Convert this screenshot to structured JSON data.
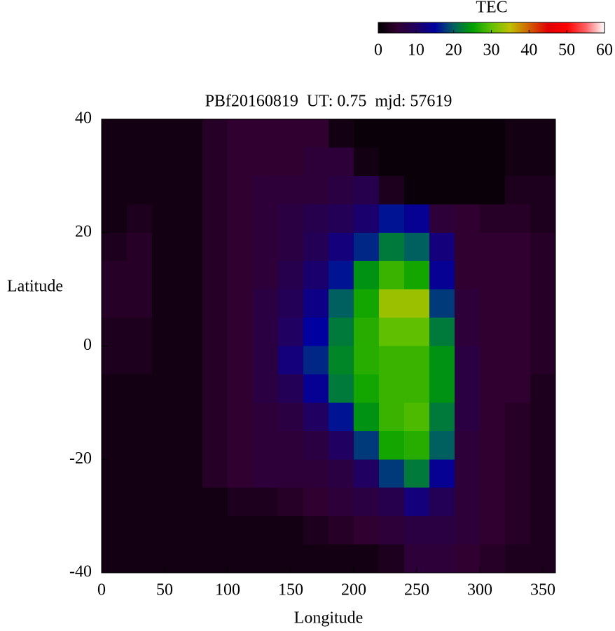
{
  "chart_data": {
    "type": "heatmap",
    "title": "PBf20160819  UT: 0.75  mjd: 57619",
    "xlabel": "Longitude",
    "ylabel": "Latitude",
    "colorbar_label": "TEC",
    "xbins": [
      0,
      20,
      40,
      60,
      80,
      100,
      120,
      140,
      160,
      180,
      200,
      220,
      240,
      260,
      280,
      300,
      320,
      340,
      360
    ],
    "ybins": [
      40,
      35,
      30,
      25,
      20,
      15,
      10,
      5,
      0,
      -5,
      -10,
      -15,
      -20,
      -25,
      -30,
      -35,
      -40
    ],
    "xlim": [
      0,
      360
    ],
    "ylim": [
      -40,
      40
    ],
    "xticks": [
      0,
      50,
      100,
      150,
      200,
      250,
      300,
      350
    ],
    "yticks": [
      -40,
      -20,
      0,
      20,
      40
    ],
    "zlim": [
      0,
      60
    ],
    "zticks": [
      0,
      10,
      20,
      30,
      40,
      50,
      60
    ],
    "colormap": [
      "#000000",
      "#300030",
      "#200060",
      "#0000a0",
      "#006060",
      "#00a000",
      "#60c000",
      "#c0c000",
      "#d06000",
      "#e00000",
      "#ff0000",
      "#ff6060",
      "#ffffff"
    ],
    "z": [
      [
        2,
        2,
        2,
        2,
        4,
        5,
        5,
        5,
        5,
        2,
        1,
        1,
        1,
        1,
        1,
        1,
        2,
        2
      ],
      [
        2,
        2,
        2,
        2,
        4,
        5,
        5,
        5,
        6,
        6,
        2,
        1,
        1,
        1,
        1,
        1,
        2,
        2
      ],
      [
        2,
        2,
        2,
        2,
        4,
        5,
        6,
        6,
        6,
        7,
        8,
        3,
        1,
        1,
        1,
        1,
        3,
        3
      ],
      [
        2,
        3,
        2,
        2,
        4,
        5,
        6,
        7,
        8,
        9,
        11,
        16,
        14,
        6,
        5,
        4,
        4,
        3
      ],
      [
        3,
        4,
        2,
        2,
        4,
        5,
        6,
        7,
        9,
        12,
        17,
        22,
        20,
        12,
        5,
        5,
        5,
        4
      ],
      [
        4,
        4,
        2,
        2,
        4,
        5,
        6,
        8,
        11,
        16,
        24,
        28,
        26,
        14,
        5,
        5,
        5,
        4
      ],
      [
        4,
        4,
        2,
        2,
        4,
        5,
        7,
        9,
        13,
        20,
        26,
        33,
        33,
        18,
        6,
        5,
        5,
        4
      ],
      [
        3,
        3,
        2,
        2,
        4,
        5,
        7,
        10,
        15,
        22,
        27,
        30,
        30,
        22,
        6,
        5,
        5,
        4
      ],
      [
        3,
        3,
        2,
        2,
        4,
        5,
        7,
        12,
        17,
        23,
        27,
        28,
        28,
        24,
        7,
        5,
        5,
        4
      ],
      [
        2,
        2,
        2,
        2,
        4,
        5,
        7,
        9,
        14,
        22,
        26,
        28,
        28,
        24,
        7,
        5,
        5,
        3
      ],
      [
        2,
        2,
        2,
        2,
        4,
        5,
        6,
        7,
        10,
        16,
        24,
        28,
        29,
        22,
        7,
        5,
        4,
        3
      ],
      [
        2,
        2,
        2,
        2,
        4,
        5,
        6,
        6,
        7,
        10,
        18,
        26,
        27,
        20,
        6,
        5,
        4,
        3
      ],
      [
        2,
        2,
        2,
        2,
        4,
        5,
        6,
        6,
        6,
        7,
        10,
        18,
        22,
        14,
        6,
        5,
        4,
        3
      ],
      [
        2,
        2,
        2,
        2,
        2,
        3,
        3,
        4,
        5,
        6,
        7,
        8,
        12,
        9,
        6,
        5,
        4,
        3
      ],
      [
        2,
        2,
        2,
        2,
        2,
        2,
        2,
        2,
        3,
        4,
        5,
        6,
        7,
        7,
        6,
        5,
        4,
        3
      ],
      [
        2,
        2,
        2,
        2,
        2,
        2,
        2,
        2,
        2,
        2,
        2,
        3,
        6,
        6,
        5,
        4,
        3,
        3
      ]
    ]
  }
}
